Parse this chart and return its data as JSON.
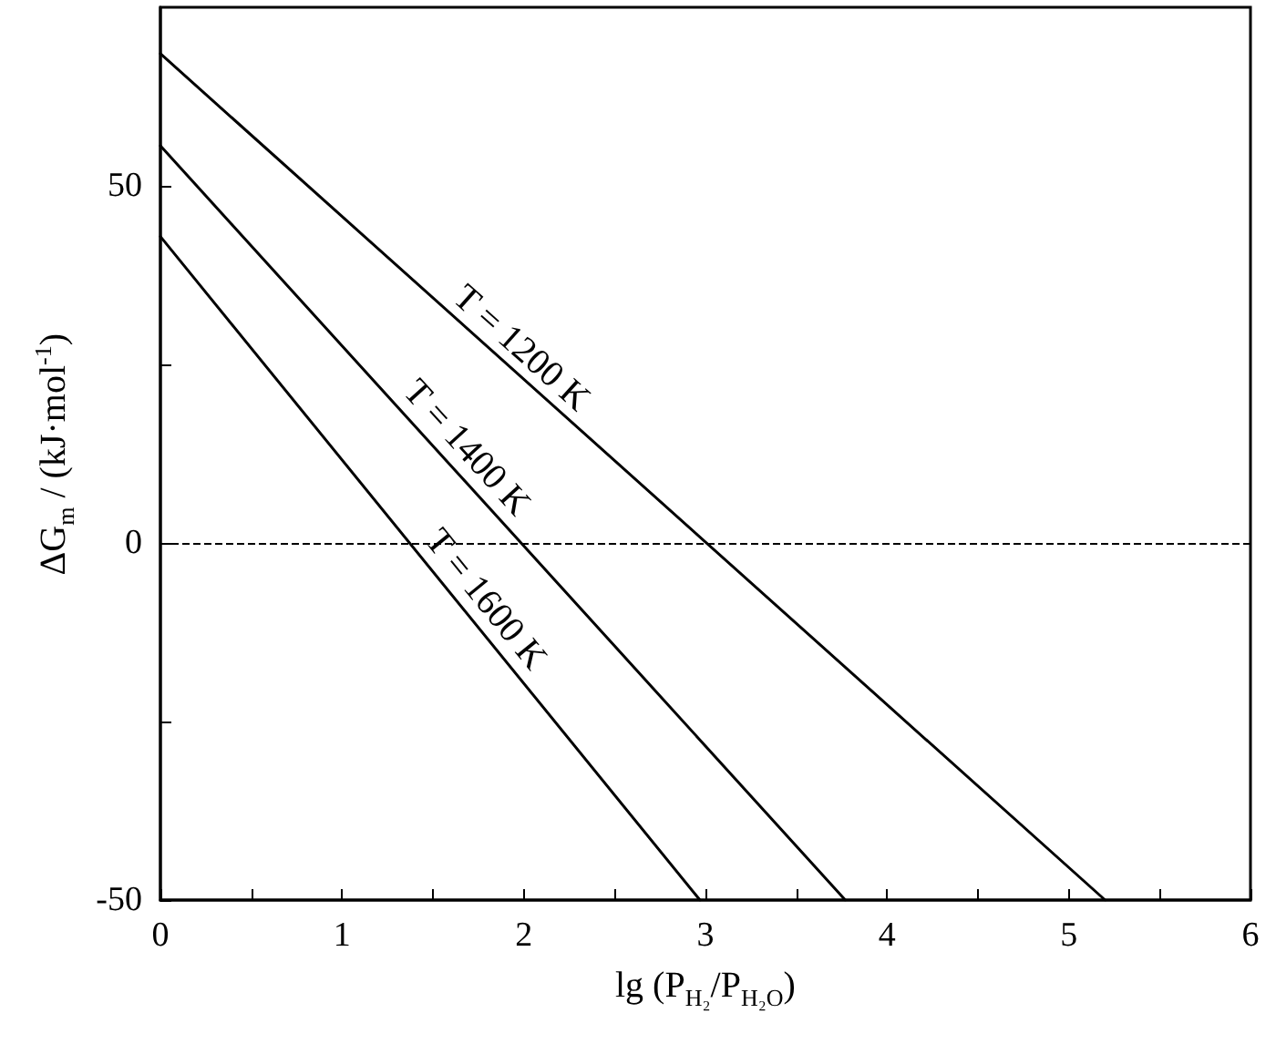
{
  "chart_data": {
    "type": "line",
    "xlabel": "lg (P$_{H₂}$/P$_{H₂O}$)",
    "ylabel": "ΔG$_{m}$ / (kJ·mol$^{-1}$)",
    "xlim": [
      0,
      6
    ],
    "ylim": [
      -50,
      75
    ],
    "xticks": [
      0,
      {
        "value": 0.5,
        "label": null
      },
      1,
      {
        "value": 1.5,
        "label": null
      },
      2,
      {
        "value": 2.5,
        "label": null
      },
      3,
      {
        "value": 3.5,
        "label": null
      },
      4,
      {
        "value": 4.5,
        "label": null
      },
      5,
      {
        "value": 5.5,
        "label": null
      },
      6
    ],
    "yticks": [
      -50,
      {
        "value": -25,
        "label": null
      },
      0,
      {
        "value": 25,
        "label": null
      },
      50
    ],
    "series": [
      {
        "color": "#000000",
        "x": [
          0,
          5.2
        ],
        "values": [
          68.5,
          -50
        ]
      },
      {
        "color": "#000000",
        "x": [
          0,
          3.77
        ],
        "values": [
          55.6,
          -50
        ]
      },
      {
        "color": "#000000",
        "x": [
          0,
          2.97
        ],
        "values": [
          42.9,
          -50
        ]
      }
    ],
    "annotations": [
      {
        "text": "T = 1200 K",
        "x": 1.9,
        "y": 24.8
      },
      {
        "text": "T = 1400 K",
        "x": 1.59,
        "y": 11.1
      },
      {
        "text": "T = 1600 K",
        "x": 1.69,
        "y": -10
      }
    ],
    "ref_lines": [
      {
        "axis": "y",
        "value": 0,
        "line_style": "dashed",
        "color": "#000000"
      }
    ],
    "grid": false,
    "marker": "none",
    "line_style": "solid"
  }
}
